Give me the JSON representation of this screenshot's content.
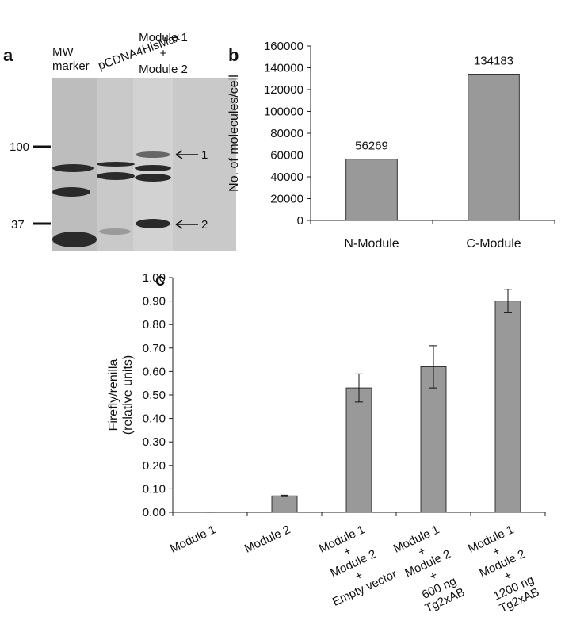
{
  "panel_labels": [
    "a",
    "b",
    "c"
  ],
  "blot": {
    "lane_labels": [
      [
        "MW",
        "marker"
      ],
      [
        "pCDNA4HisMax"
      ],
      [
        "Module 1",
        "+",
        "Module 2"
      ]
    ],
    "markers": [
      "100",
      "37"
    ],
    "arrows": [
      "1",
      "2"
    ]
  },
  "chart_data": [
    {
      "type": "bar",
      "ylabel": "No. of molecules/cell",
      "categories": [
        "N-Module",
        "C-Module"
      ],
      "values": [
        56269,
        134183
      ],
      "color": "#999999",
      "ylim": [
        0,
        160000
      ],
      "yticks": [
        0,
        20000,
        40000,
        60000,
        80000,
        100000,
        120000,
        140000,
        160000
      ],
      "grid": false
    },
    {
      "type": "bar",
      "ylabel": [
        "Firefly/renilla",
        "(relative units)"
      ],
      "categories": [
        [
          "Module 1"
        ],
        [
          "Module 2"
        ],
        [
          "Module 1",
          "+",
          "Module 2",
          "+",
          "Empty vector"
        ],
        [
          "Module 1",
          "+",
          "Module 2",
          "+",
          "600 ng",
          "Tg2xAB"
        ],
        [
          "Module 1",
          "+",
          "Module 2",
          "+",
          "1200 ng",
          "Tg2xAB"
        ]
      ],
      "values": [
        0,
        0.07,
        0.53,
        0.62,
        0.9
      ],
      "errors": [
        0,
        0.003,
        0.06,
        0.09,
        0.05
      ],
      "color": "#999999",
      "ylim": [
        0,
        1
      ],
      "yticks": [
        {
          "value": 0,
          "label": "0.00"
        },
        {
          "value": 0.1,
          "label": "0.10"
        },
        {
          "value": 0.2,
          "label": "0.20"
        },
        {
          "value": 0.3,
          "label": "0.30"
        },
        {
          "value": 0.4,
          "label": "0.40"
        },
        {
          "value": 0.5,
          "label": "0.50"
        },
        {
          "value": 0.6,
          "label": "0.60"
        },
        {
          "value": 0.7,
          "label": "0.70"
        },
        {
          "value": 0.8,
          "label": "0.80"
        },
        {
          "value": 0.9,
          "label": "0.90"
        },
        {
          "value": 1,
          "label": "1.00"
        }
      ],
      "grid": false
    }
  ]
}
